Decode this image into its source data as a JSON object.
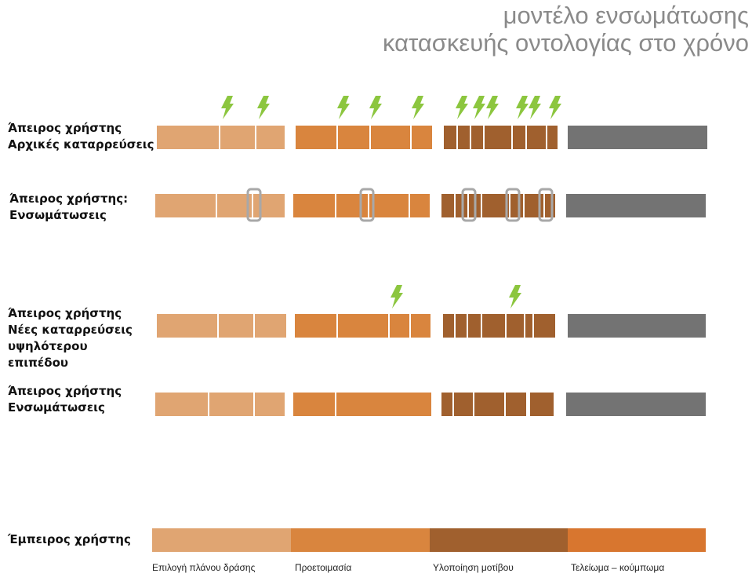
{
  "title": {
    "line1": "μοντέλο ενσωμάτωσης",
    "line2": "κατασκευής οντολογίας στο χρόνο"
  },
  "rows": [
    {
      "lines": [
        "Άπειρος χρήστης",
        "Αρχικές καταρρεύσεις"
      ]
    },
    {
      "lines": [
        "Άπειρος χρήστης:",
        "Ενσωμάτωσεις"
      ]
    },
    {
      "lines": [
        "Άπειρος χρήστης",
        "Νέες καταρρεύσεις",
        "υψηλότερου",
        "επιπέδου"
      ]
    },
    {
      "lines": [
        "Άπειρος χρήστης",
        "Ενσωμάτωσεις"
      ]
    },
    {
      "lines": [
        "Έμπειρος χρήστης"
      ]
    }
  ],
  "phases": [
    {
      "label": "Επιλογή πλάνου δράσης",
      "color": "#e0a572"
    },
    {
      "label": "Προετοιμασία",
      "color": "#d9853e"
    },
    {
      "label": "Υλοποίηση μοτίβου",
      "color": "#a0602e"
    },
    {
      "label": "Τελείωμα – κούμπωμα",
      "color": "#d8762f"
    }
  ],
  "colors": {
    "final_gray": "#737373",
    "breakdown_marker": "#8cc63f",
    "clamp": "#a8a8a8",
    "title": "#8a8a8a"
  },
  "icons": {
    "breakdown": "lightning-bolt-icon",
    "integration": "clamp-icon"
  }
}
